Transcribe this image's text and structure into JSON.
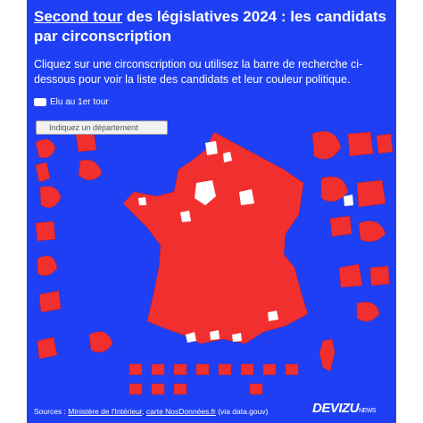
{
  "header": {
    "title_link": "Second tour",
    "title_rest": " des législatives 2024 : les candidats par circonscription",
    "subtitle": "Cliquez sur une circonscription ou utilisez la barre de recherche ci-dessous pour voir la liste des candidats et leur couleur politique."
  },
  "legend": {
    "label": "Elu au 1er tour"
  },
  "search": {
    "placeholder": "Indiquez un département"
  },
  "footer": {
    "prefix": "Sources : ",
    "source1": "Ministère de l'Intérieur",
    "sep": ", ",
    "source2": "carte NosDonnées.fr",
    "suffix": " (via data.gouv)"
  },
  "brand": {
    "name": "DEVIZU",
    "suffix": "NEWS"
  }
}
